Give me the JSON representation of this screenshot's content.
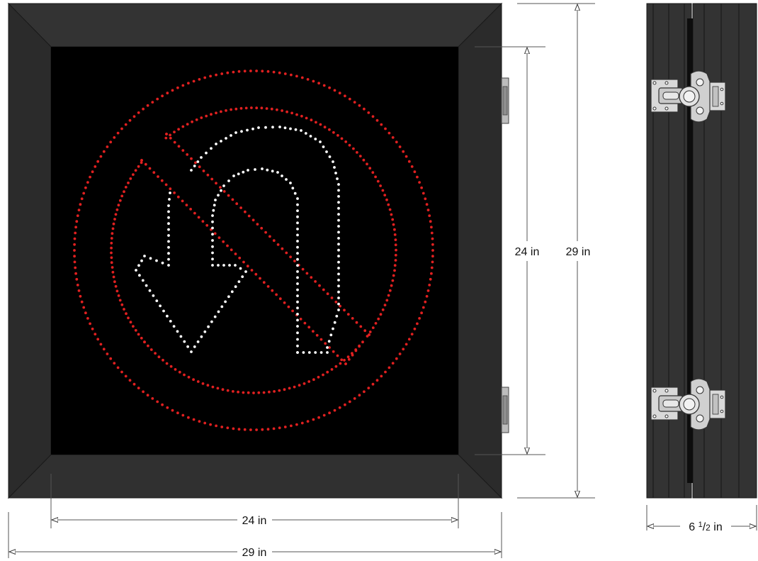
{
  "dimensions": {
    "inner_width": "24 in",
    "outer_width": "29 in",
    "inner_height": "24 in",
    "outer_height": "29 in",
    "depth_whole": "6 ",
    "depth_fraction_num": "1",
    "depth_fraction_den": "2",
    "depth_unit": " in"
  },
  "sign": {
    "symbol": "no-u-turn",
    "frame_color": "#2e2e2e",
    "face_color": "#000000",
    "prohibition_led_color": "#e02020",
    "arrow_led_color": "#ffffff"
  },
  "side_view": {
    "latch_count": 2,
    "housing_color": "#2e2e2e",
    "latch_color": "#d8d8d8"
  }
}
